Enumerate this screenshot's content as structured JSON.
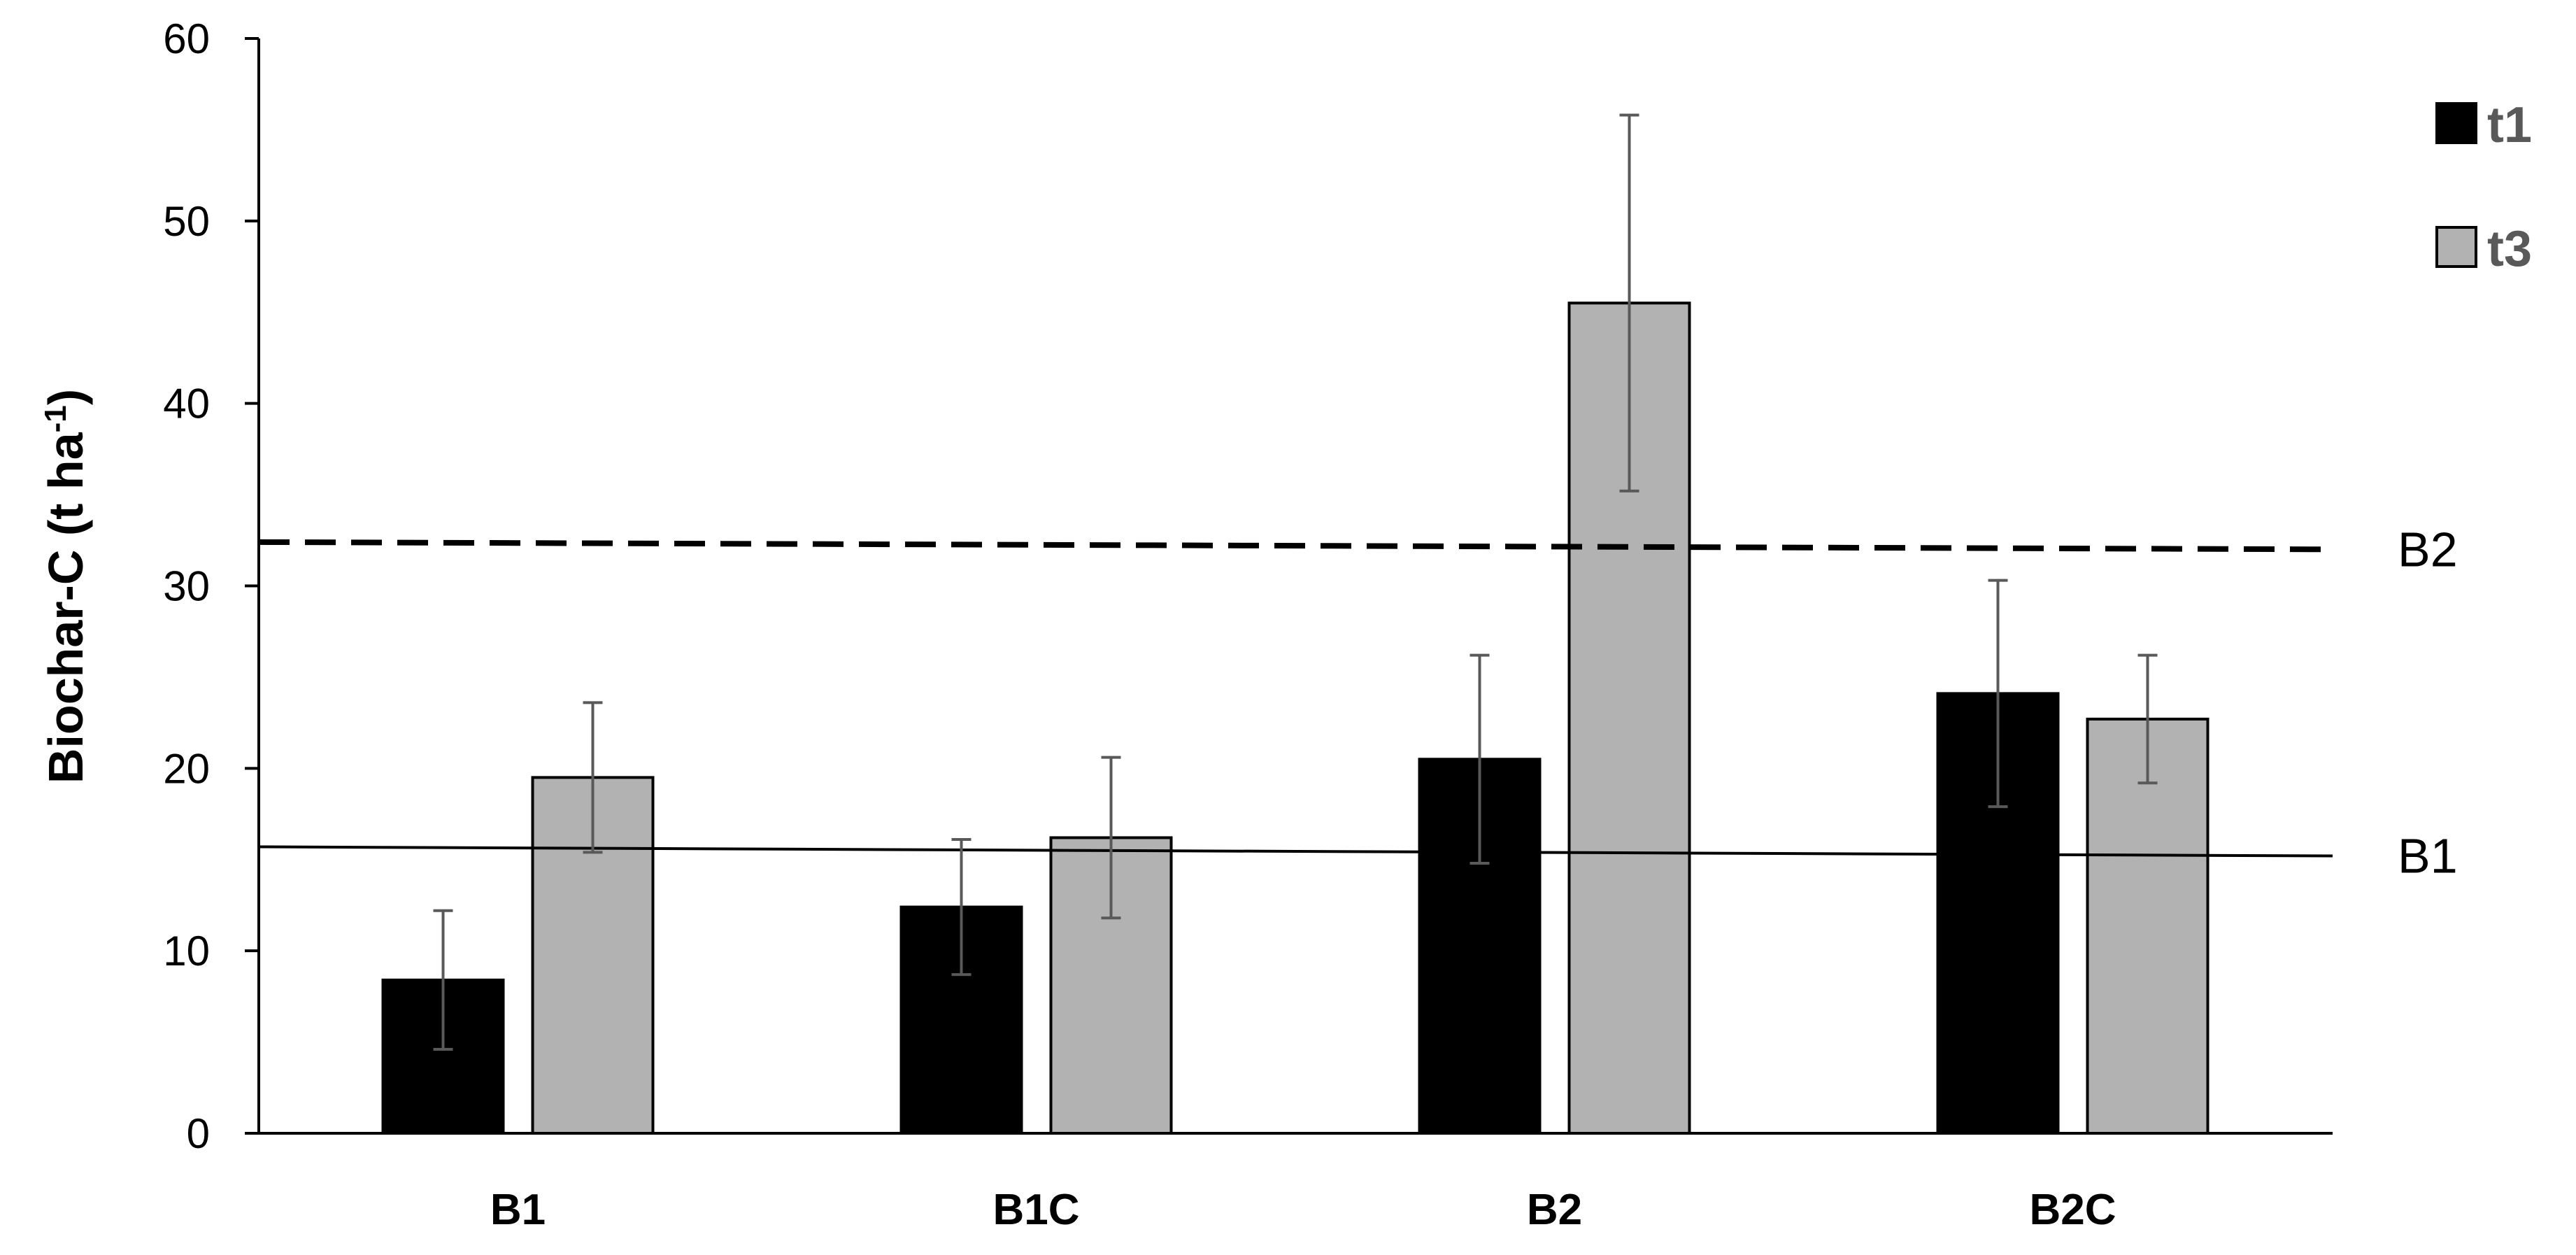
{
  "chart_data": {
    "type": "bar",
    "title": "",
    "xlabel": "",
    "ylabel": "Biochar-C (t ha",
    "ylabel_superscript": "-1",
    "ylabel_suffix": ")",
    "ylim": [
      0,
      60
    ],
    "yticks": [
      "0",
      "10",
      "20",
      "30",
      "40",
      "50",
      "60"
    ],
    "grid": false,
    "legend_position": "top-right",
    "categories": [
      "B1",
      "B1C",
      "B2",
      "B2C"
    ],
    "series": [
      {
        "name": "t1",
        "color": "#000000",
        "values": [
          8.4,
          12.4,
          20.5,
          24.1
        ],
        "error": [
          3.8,
          3.7,
          5.7,
          6.2
        ]
      },
      {
        "name": "t3",
        "color": "#b2b2b2",
        "values": [
          19.5,
          16.2,
          45.5,
          22.7
        ],
        "error": [
          4.1,
          4.4,
          10.3,
          3.5
        ]
      }
    ],
    "reference_lines": [
      {
        "label": "B1",
        "style": "solid",
        "y_start": 15.7,
        "y_end": 15.2
      },
      {
        "label": "B2",
        "style": "dashed",
        "y_start": 32.4,
        "y_end": 32.0
      }
    ]
  }
}
